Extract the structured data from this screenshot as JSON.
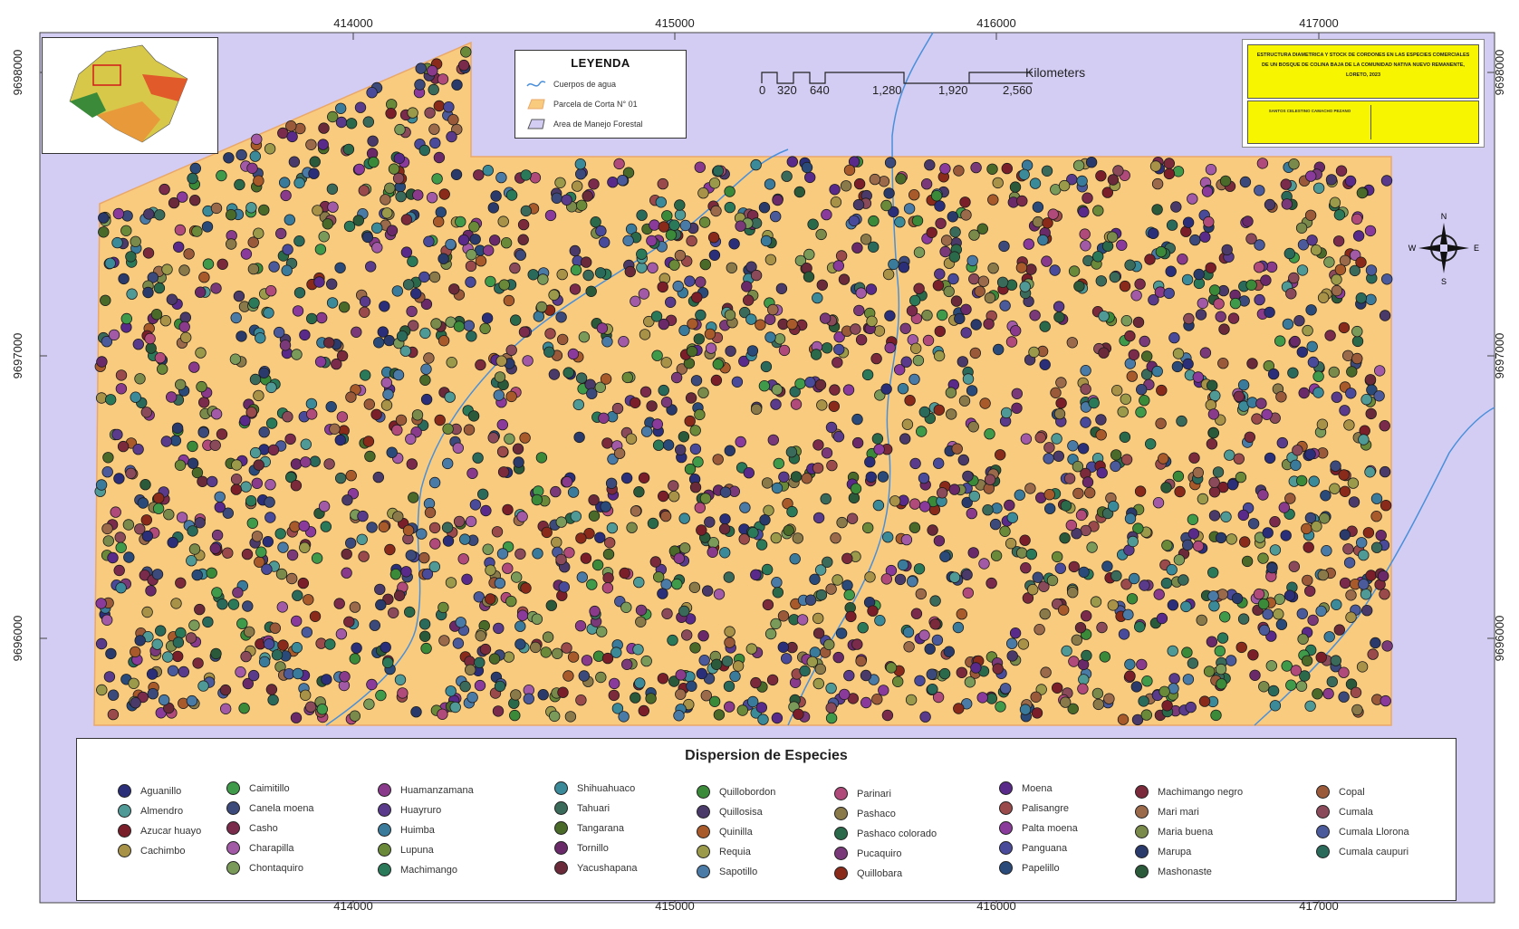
{
  "map": {
    "colors": {
      "background": "#d3cdf4",
      "parcel": "#f9cb7f",
      "parcel_border": "#e9a86a",
      "water": "#4a8fd9"
    },
    "x_ticks": [
      "414000",
      "415000",
      "416000",
      "417000"
    ],
    "y_ticks": [
      "9698000",
      "9697000",
      "9696000"
    ]
  },
  "legend": {
    "title": "LEYENDA",
    "items": [
      {
        "label": "Cuerpos de agua",
        "symbol": "water-line-icon",
        "color": "#4a8fd9"
      },
      {
        "label": "Parcela de Corta N° 01",
        "symbol": "parcel-swatch-icon",
        "color": "#f9cb7f"
      },
      {
        "label": "Area de Manejo Forestal",
        "symbol": "area-swatch-icon",
        "color": "#d3cdf4"
      }
    ]
  },
  "scale": {
    "labels": [
      "0",
      "320",
      "640",
      "1,280",
      "1,920",
      "2,560"
    ],
    "unit": "Kilometers"
  },
  "title_block": {
    "title": "ESTRUCTURA DIAMETRICA Y STOCK DE CORDONES EN LAS ESPECIES COMERCIALES DE UN BOSQUE DE COLINA BAJA DE LA COMUNIDAD NATIVA NUEVO REMANENTE, LORETO, 2023",
    "author": "SANTOS CELESTINO CAMACHO PEZANO"
  },
  "compass": {
    "n": "N",
    "s": "S",
    "e": "E",
    "w": "W"
  },
  "species_legend": {
    "title": "Dispersion de Especies",
    "items": [
      {
        "label": "Aguanillo",
        "color": "#2b2f7a"
      },
      {
        "label": "Almendro",
        "color": "#4f9a96"
      },
      {
        "label": "Azucar huayo",
        "color": "#7a1f2a"
      },
      {
        "label": "Cachimbo",
        "color": "#a89248"
      },
      {
        "label": "Caimitillo",
        "color": "#3f9a4a"
      },
      {
        "label": "Canela moena",
        "color": "#3b4a7a"
      },
      {
        "label": "Casho",
        "color": "#7a2a4a"
      },
      {
        "label": "Charapilla",
        "color": "#a35aa6"
      },
      {
        "label": "Chontaquiro",
        "color": "#7a9a5a"
      },
      {
        "label": "Huamanzamana",
        "color": "#8a3a8a"
      },
      {
        "label": "Huayruro",
        "color": "#5a3a8a"
      },
      {
        "label": "Huimba",
        "color": "#3a7a9a"
      },
      {
        "label": "Lupuna",
        "color": "#6a8a3a"
      },
      {
        "label": "Machimango",
        "color": "#2a7a5a"
      },
      {
        "label": "Shihuahuaco",
        "color": "#3a8a9a"
      },
      {
        "label": "Tahuari",
        "color": "#3a6a5a"
      },
      {
        "label": "Tangarana",
        "color": "#4a6a2a"
      },
      {
        "label": "Tornillo",
        "color": "#6a2a6a"
      },
      {
        "label": "Yacushapana",
        "color": "#6a2a3a"
      },
      {
        "label": "Quillobordon",
        "color": "#3a8a3a"
      },
      {
        "label": "Quillosisa",
        "color": "#4a3a6a"
      },
      {
        "label": "Quinilla",
        "color": "#a85a2a"
      },
      {
        "label": "Requia",
        "color": "#9a9a4a"
      },
      {
        "label": "Sapotillo",
        "color": "#4a7aa6"
      },
      {
        "label": "Parinari",
        "color": "#b04a7a"
      },
      {
        "label": "Pashaco",
        "color": "#8a7a4a"
      },
      {
        "label": "Pashaco colorado",
        "color": "#2a6a4a"
      },
      {
        "label": "Pucaquiro",
        "color": "#7a3a7a"
      },
      {
        "label": "Quillobara",
        "color": "#8a2a1a"
      },
      {
        "label": "Moena",
        "color": "#5a2a8a"
      },
      {
        "label": "Palisangre",
        "color": "#9a4a4a"
      },
      {
        "label": "Palta moena",
        "color": "#8a3a9a"
      },
      {
        "label": "Panguana",
        "color": "#4a4a9a"
      },
      {
        "label": "Papelillo",
        "color": "#2a4a7a"
      },
      {
        "label": "Machimango negro",
        "color": "#7a2a3a"
      },
      {
        "label": "Mari mari",
        "color": "#9a6a4a"
      },
      {
        "label": "Maria buena",
        "color": "#7a8a4a"
      },
      {
        "label": "Marupa",
        "color": "#2a3a6a"
      },
      {
        "label": "Mashonaste",
        "color": "#2a5a3a"
      },
      {
        "label": "Copal",
        "color": "#9a5a3a"
      },
      {
        "label": "Cumala",
        "color": "#8a4a5a"
      },
      {
        "label": "Cumala Llorona",
        "color": "#4a5a9a"
      },
      {
        "label": "Cumala caupuri",
        "color": "#2a6a5a"
      }
    ]
  }
}
